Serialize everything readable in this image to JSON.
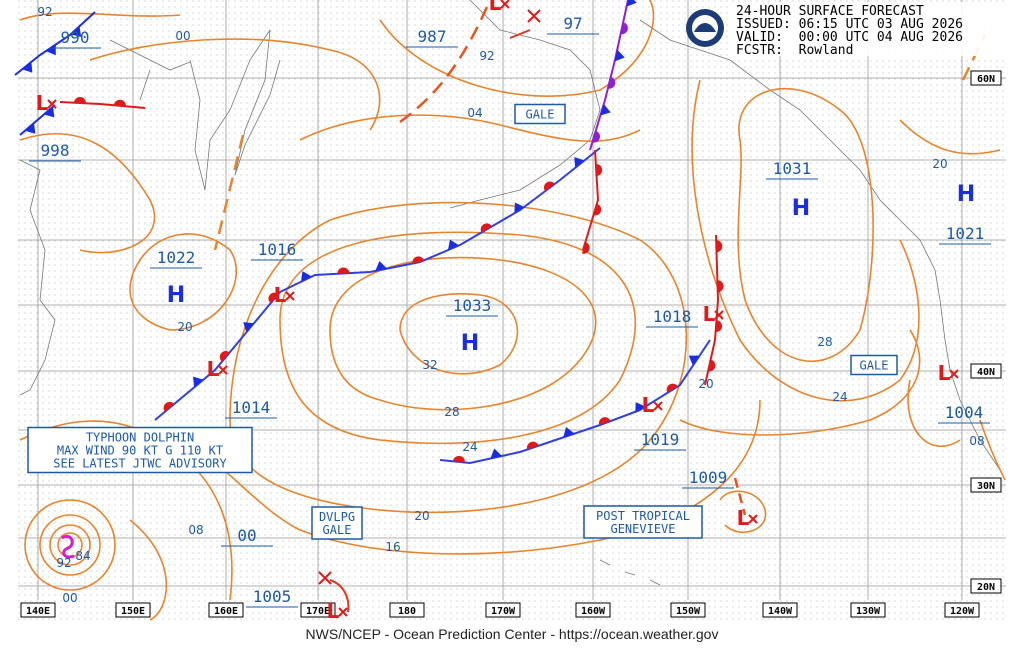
{
  "header": {
    "title": "24-HOUR SURFACE FORECAST",
    "issued": "ISSUED: 06:15 UTC 03 AUG 2026",
    "valid": "VALID:  00:00 UTC 04 AUG 2026",
    "forecaster": "FCSTR:  Rowland"
  },
  "footer": "NWS/NCEP - Ocean Prediction Center - https://ocean.weather.gov",
  "longitudes": [
    "140E",
    "150E",
    "160E",
    "170E",
    "180",
    "170W",
    "160W",
    "150W",
    "140W",
    "130W",
    "120W"
  ],
  "latitudes": [
    "60N",
    "40N",
    "30N",
    "20N"
  ],
  "pressures": [
    "990",
    "998",
    "987",
    "97",
    "1031",
    "1021",
    "1022",
    "1016",
    "1033",
    "1018",
    "1014",
    "1019",
    "1004",
    "1009",
    "00",
    "1005"
  ],
  "isobar_labels": [
    "92",
    "00",
    "92",
    "04",
    "20",
    "32",
    "28",
    "24",
    "20",
    "16",
    "08",
    "92",
    "84",
    "00",
    "28",
    "24",
    "20",
    "08",
    "20"
  ],
  "highs": [
    "H",
    "H",
    "H",
    "H"
  ],
  "lows": [
    "L",
    "L",
    "L",
    "L",
    "L",
    "L",
    "L",
    "L",
    "L"
  ],
  "boxes": [
    {
      "lines": [
        "GALE"
      ]
    },
    {
      "lines": [
        "GALE"
      ]
    },
    {
      "lines": [
        "TYPHOON DOLPHIN",
        "MAX WIND 90 KT G 110 KT",
        "SEE LATEST JTWC ADVISORY"
      ]
    },
    {
      "lines": [
        "DVLPG",
        "GALE"
      ]
    },
    {
      "lines": [
        "POST TROPICAL",
        "GENEVIEVE"
      ]
    }
  ]
}
